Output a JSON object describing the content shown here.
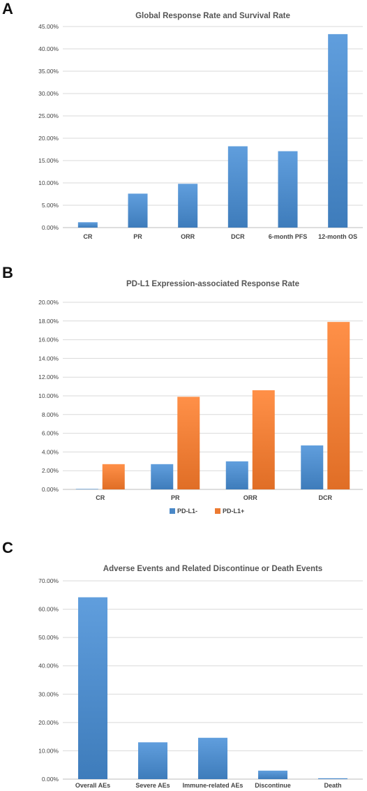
{
  "panels": [
    {
      "letter": "A"
    },
    {
      "letter": "B"
    },
    {
      "letter": "C"
    }
  ],
  "colors": {
    "blue": "#4a88c7",
    "orange": "#ec7a32",
    "grid": "#d9d9d9"
  },
  "chart_data": [
    {
      "type": "bar",
      "title": "Global Response Rate and Survival Rate",
      "categories": [
        "CR",
        "PR",
        "ORR",
        "DCR",
        "6-month PFS",
        "12-month OS"
      ],
      "series": [
        {
          "values": [
            1.2,
            7.6,
            9.8,
            18.2,
            17.1,
            43.3
          ],
          "color": "#4a88c7"
        }
      ],
      "ylim": [
        0,
        45
      ],
      "yticks": [
        "0.00%",
        "5.00%",
        "10.00%",
        "15.00%",
        "20.00%",
        "25.00%",
        "30.00%",
        "35.00%",
        "40.00%",
        "45.00%"
      ],
      "grid": true
    },
    {
      "type": "bar",
      "title": "PD-L1 Expression-associated Response Rate",
      "categories": [
        "CR",
        "PR",
        "ORR",
        "DCR"
      ],
      "series": [
        {
          "name": "PD-L1-",
          "values": [
            0.05,
            2.7,
            3.0,
            4.7
          ],
          "color": "#4a88c7"
        },
        {
          "name": "PD-L1+",
          "values": [
            2.7,
            9.9,
            10.6,
            17.9
          ],
          "color": "#ec7a32"
        }
      ],
      "ylim": [
        0,
        20
      ],
      "yticks": [
        "0.00%",
        "2.00%",
        "4.00%",
        "6.00%",
        "8.00%",
        "10.00%",
        "12.00%",
        "14.00%",
        "16.00%",
        "18.00%",
        "20.00%"
      ],
      "grid": true,
      "legend": "bottom"
    },
    {
      "type": "bar",
      "title": "Adverse Events and Related Discontinue or Death Events",
      "categories": [
        "Overall AEs",
        "Severe AEs",
        "Immune-related AEs",
        "Discontinue",
        "Death"
      ],
      "series": [
        {
          "values": [
            64.2,
            13.0,
            14.6,
            3.0,
            0.3
          ],
          "color": "#4a88c7"
        }
      ],
      "ylim": [
        0,
        70
      ],
      "yticks": [
        "0.00%",
        "10.00%",
        "20.00%",
        "30.00%",
        "40.00%",
        "50.00%",
        "60.00%",
        "70.00%"
      ],
      "grid": true
    }
  ]
}
